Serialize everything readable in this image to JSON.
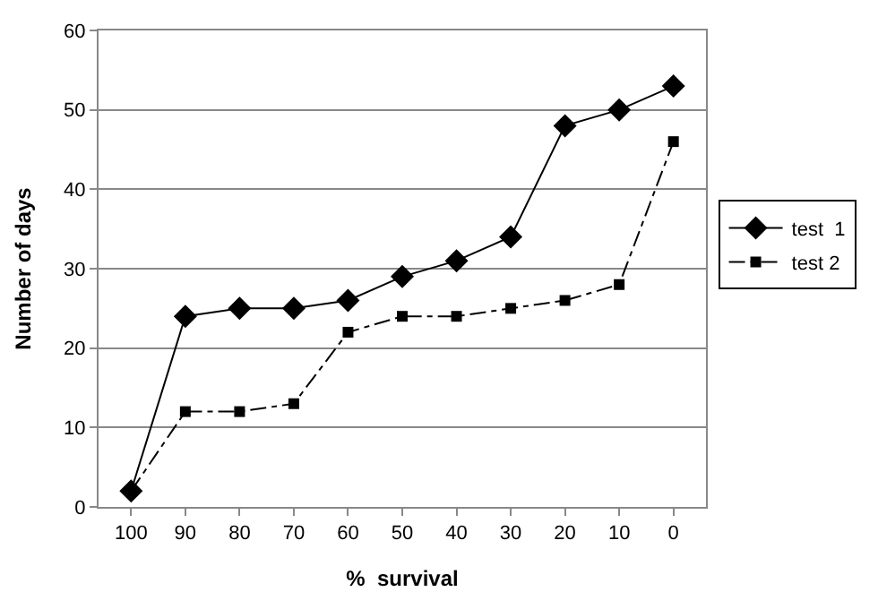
{
  "chart_data": {
    "type": "line",
    "xlabel": "%  survival",
    "ylabel": "Number of days",
    "categories": [
      "100",
      "90",
      "80",
      "70",
      "60",
      "50",
      "40",
      "30",
      "20",
      "10",
      "0"
    ],
    "series": [
      {
        "name": "test  1",
        "color": "#000000",
        "marker": "diamond",
        "line_style": "solid",
        "values": [
          2,
          24,
          25,
          25,
          26,
          29,
          31,
          34,
          48,
          50,
          53
        ]
      },
      {
        "name": "test 2",
        "color": "#000000",
        "marker": "square",
        "line_style": "dashed",
        "values": [
          2,
          12,
          12,
          13,
          22,
          24,
          24,
          25,
          26,
          28,
          46
        ]
      }
    ],
    "ylim": [
      0,
      60
    ],
    "yticks": [
      0,
      10,
      20,
      30,
      40,
      50,
      60
    ],
    "grid": "y",
    "legend": "right"
  }
}
